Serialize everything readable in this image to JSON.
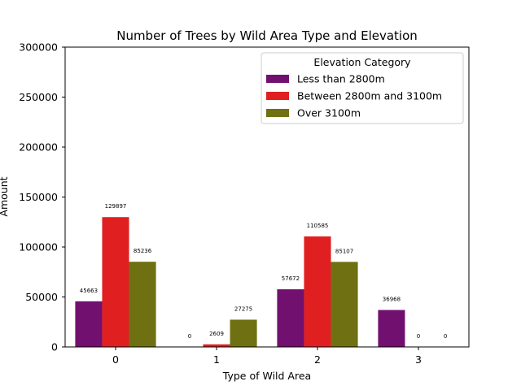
{
  "chart_data": {
    "type": "bar",
    "title": "Number of Trees by Wild Area Type and Elevation",
    "xlabel": "Type of Wild Area",
    "ylabel": "Amount",
    "categories": [
      "0",
      "1",
      "2",
      "3"
    ],
    "ylim": [
      0,
      300000
    ],
    "yticks": [
      0,
      50000,
      100000,
      150000,
      200000,
      250000,
      300000
    ],
    "grid": false,
    "legend": {
      "title": "Elevation Category",
      "placement": "top-right"
    },
    "series": [
      {
        "name": "Less than 2800m",
        "color": "#721070",
        "values": [
          45663,
          0,
          57672,
          36968
        ]
      },
      {
        "name": "Between 2800m and 3100m",
        "color": "#e02020",
        "values": [
          129897,
          2609,
          110585,
          0
        ]
      },
      {
        "name": "Over 3100m",
        "color": "#6f7012",
        "values": [
          85236,
          27275,
          85107,
          0
        ]
      }
    ]
  }
}
